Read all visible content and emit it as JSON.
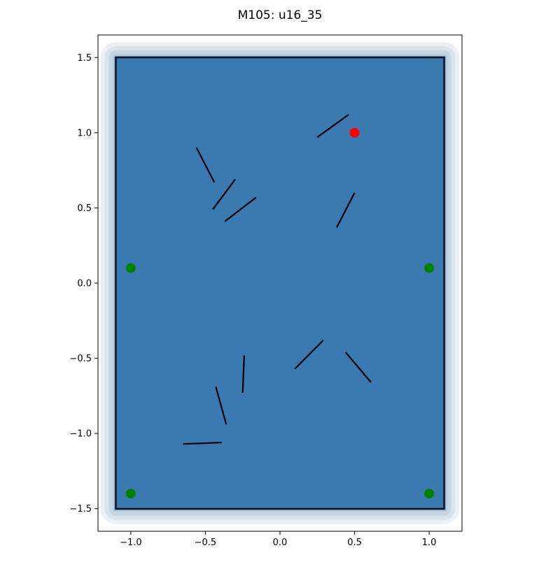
{
  "chart_data": {
    "type": "scatter",
    "title": "M105: u16_35",
    "xlabel": "",
    "ylabel": "",
    "xlim": [
      -1.22,
      1.22
    ],
    "ylim": [
      -1.65,
      1.65
    ],
    "x_ticks": [
      -1.0,
      -0.5,
      0.0,
      0.5,
      1.0
    ],
    "x_tick_labels": [
      "−1.0",
      "−0.5",
      "0.0",
      "0.5",
      "1.0"
    ],
    "y_ticks": [
      -1.5,
      -1.0,
      -0.5,
      0.0,
      0.5,
      1.0,
      1.5
    ],
    "y_tick_labels": [
      "−1.5",
      "−1.0",
      "−0.5",
      "0.0",
      "0.5",
      "1.0",
      "1.5"
    ],
    "grid": false,
    "boundary_rect": {
      "x": [
        -1.1,
        1.1
      ],
      "y": [
        -1.5,
        1.5
      ],
      "color": "#000000"
    },
    "coverage_fill": {
      "x": [
        -1.1,
        1.1
      ],
      "y": [
        -1.5,
        1.5
      ],
      "color": "#3a7ab0",
      "halo_color": "#b4c8dc"
    },
    "segments": [
      {
        "x": [
          0.25,
          0.46
        ],
        "y": [
          0.97,
          1.12
        ]
      },
      {
        "x": [
          -0.56,
          -0.44
        ],
        "y": [
          0.9,
          0.67
        ]
      },
      {
        "x": [
          -0.45,
          -0.3
        ],
        "y": [
          0.49,
          0.69
        ]
      },
      {
        "x": [
          -0.37,
          -0.16
        ],
        "y": [
          0.41,
          0.57
        ]
      },
      {
        "x": [
          0.38,
          0.5
        ],
        "y": [
          0.37,
          0.6
        ]
      },
      {
        "x": [
          0.1,
          0.29
        ],
        "y": [
          -0.57,
          -0.38
        ]
      },
      {
        "x": [
          0.44,
          0.61
        ],
        "y": [
          -0.46,
          -0.66
        ]
      },
      {
        "x": [
          -0.24,
          -0.25
        ],
        "y": [
          -0.48,
          -0.73
        ]
      },
      {
        "x": [
          -0.43,
          -0.36
        ],
        "y": [
          -0.69,
          -0.94
        ]
      },
      {
        "x": [
          -0.65,
          -0.39
        ],
        "y": [
          -1.07,
          -1.06
        ]
      }
    ],
    "segment_color": "#000000",
    "points_green": [
      {
        "x": -1.0,
        "y": 0.1
      },
      {
        "x": 1.0,
        "y": 0.1
      },
      {
        "x": -1.0,
        "y": -1.4
      },
      {
        "x": 1.0,
        "y": -1.4
      }
    ],
    "points_red": [
      {
        "x": 0.5,
        "y": 1.0
      }
    ],
    "green_color": "#008000",
    "red_color": "#ff0000"
  }
}
